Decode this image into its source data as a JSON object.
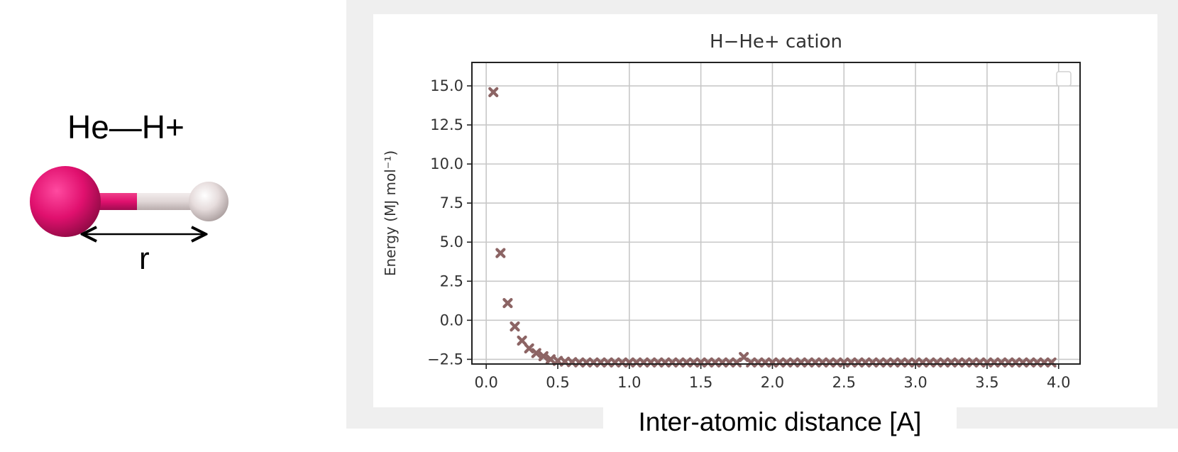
{
  "molecule": {
    "label": "He—H+",
    "distance_label": "r",
    "colors": {
      "helium": "#e0106e",
      "hydrogen": "#e6dcdc"
    }
  },
  "chart_data": {
    "type": "scatter",
    "title": "H−He+ cation",
    "xlabel": "Inter-atomic distance [A]",
    "ylabel": "Energy (MJ mol⁻¹)",
    "xlim": [
      -0.1,
      4.15
    ],
    "ylim": [
      -2.8,
      16.5
    ],
    "xticks": [
      0.0,
      0.5,
      1.0,
      1.5,
      2.0,
      2.5,
      3.0,
      3.5,
      4.0
    ],
    "xtick_labels": [
      "0.0",
      "0.5",
      "1.0",
      "1.5",
      "2.0",
      "2.5",
      "3.0",
      "3.5",
      "4.0"
    ],
    "yticks": [
      -2.5,
      0.0,
      2.5,
      5.0,
      7.5,
      10.0,
      12.5,
      15.0
    ],
    "ytick_labels": [
      "−2.5",
      "0.0",
      "2.5",
      "5.0",
      "7.5",
      "10.0",
      "12.5",
      "15.0"
    ],
    "grid": true,
    "legend": "top-right",
    "series": [
      {
        "marker": "X",
        "color": "#8c6464",
        "x": [
          0.05,
          0.1,
          0.15,
          0.2,
          0.25,
          0.3,
          0.35,
          0.4,
          0.45,
          0.5,
          0.55,
          0.6,
          0.65,
          0.7,
          0.75,
          0.8,
          0.85,
          0.9,
          0.95,
          1.0,
          1.05,
          1.1,
          1.15,
          1.2,
          1.25,
          1.3,
          1.35,
          1.4,
          1.45,
          1.5,
          1.55,
          1.6,
          1.65,
          1.7,
          1.75,
          1.8,
          1.85,
          1.9,
          1.95,
          2.0,
          2.05,
          2.1,
          2.15,
          2.2,
          2.25,
          2.3,
          2.35,
          2.4,
          2.45,
          2.5,
          2.55,
          2.6,
          2.65,
          2.7,
          2.75,
          2.8,
          2.85,
          2.9,
          2.95,
          3.0,
          3.05,
          3.1,
          3.15,
          3.2,
          3.25,
          3.3,
          3.35,
          3.4,
          3.45,
          3.5,
          3.55,
          3.6,
          3.65,
          3.7,
          3.75,
          3.8,
          3.85,
          3.9,
          3.95
        ],
        "y": [
          14.6,
          4.3,
          1.1,
          -0.4,
          -1.3,
          -1.8,
          -2.1,
          -2.3,
          -2.5,
          -2.6,
          -2.65,
          -2.68,
          -2.7,
          -2.7,
          -2.7,
          -2.7,
          -2.7,
          -2.7,
          -2.7,
          -2.7,
          -2.7,
          -2.7,
          -2.7,
          -2.7,
          -2.7,
          -2.7,
          -2.7,
          -2.7,
          -2.7,
          -2.7,
          -2.7,
          -2.7,
          -2.7,
          -2.7,
          -2.7,
          -2.35,
          -2.7,
          -2.7,
          -2.7,
          -2.7,
          -2.7,
          -2.7,
          -2.7,
          -2.7,
          -2.7,
          -2.7,
          -2.7,
          -2.7,
          -2.7,
          -2.7,
          -2.7,
          -2.7,
          -2.7,
          -2.7,
          -2.7,
          -2.7,
          -2.7,
          -2.7,
          -2.7,
          -2.7,
          -2.7,
          -2.7,
          -2.7,
          -2.7,
          -2.7,
          -2.7,
          -2.7,
          -2.7,
          -2.7,
          -2.7,
          -2.7,
          -2.7,
          -2.7,
          -2.7,
          -2.7,
          -2.7,
          -2.7,
          -2.7,
          -2.7
        ]
      }
    ]
  }
}
